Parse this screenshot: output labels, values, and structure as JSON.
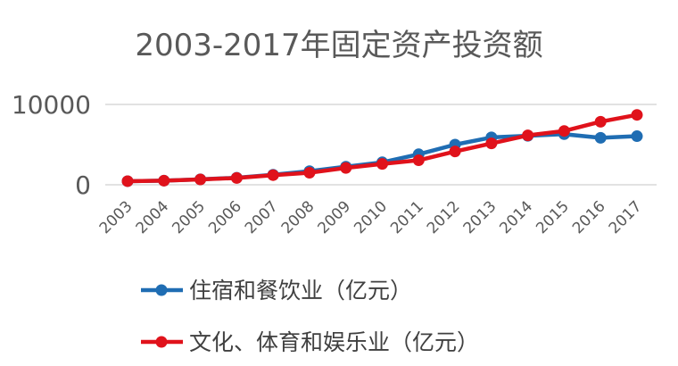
{
  "chart_data": {
    "type": "line",
    "title": "2003-2017年固定资产投资额",
    "xlabel": "",
    "ylabel": "",
    "categories": [
      "2003",
      "2004",
      "2005",
      "2006",
      "2007",
      "2008",
      "2009",
      "2010",
      "2011",
      "2012",
      "2013",
      "2014",
      "2015",
      "2016",
      "2017"
    ],
    "yticks": [
      "0",
      "10000"
    ],
    "ylim": [
      0,
      10000
    ],
    "grid": true,
    "legend_position": "bottom",
    "series": [
      {
        "name": "住宿和餐饮业（亿元）",
        "color": "#1f6db3",
        "values": [
          450,
          520,
          680,
          880,
          1250,
          1700,
          2250,
          2800,
          3800,
          5000,
          5900,
          6100,
          6300,
          5850,
          6050
        ]
      },
      {
        "name": "文化、体育和娱乐业（亿元）",
        "color": "#e0121b",
        "values": [
          450,
          510,
          660,
          850,
          1200,
          1500,
          2100,
          2600,
          3050,
          4150,
          5150,
          6150,
          6700,
          7850,
          8700
        ]
      }
    ]
  }
}
